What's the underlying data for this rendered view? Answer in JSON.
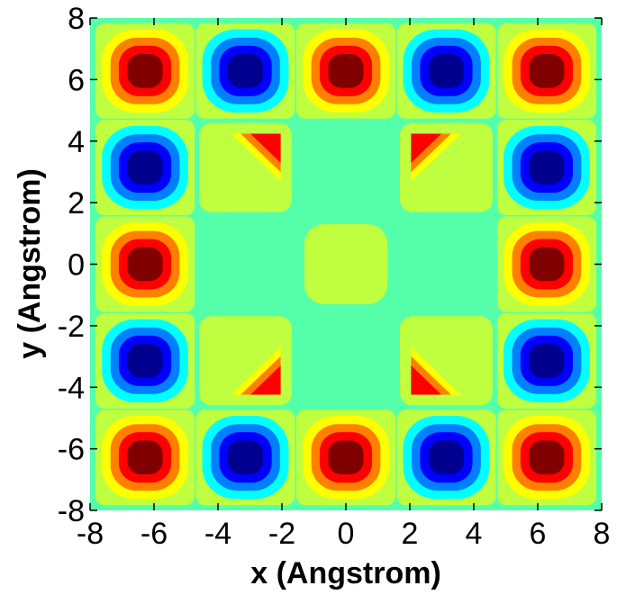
{
  "chart_data": {
    "type": "heatmap",
    "subtype": "filled-contour",
    "title": "",
    "xlabel": "x (Angstrom)",
    "ylabel": "y (Angstrom)",
    "xlim": [
      -8,
      8
    ],
    "ylim": [
      -8,
      8
    ],
    "xticks": [
      -8,
      -6,
      -4,
      -2,
      0,
      2,
      4,
      6,
      8
    ],
    "yticks": [
      -8,
      -6,
      -4,
      -2,
      0,
      2,
      4,
      6,
      8
    ],
    "xtick_labels": [
      "-8",
      "-6",
      "-4",
      "-2",
      "0",
      "2",
      "4",
      "6",
      "8"
    ],
    "ytick_labels": [
      "-8",
      "-6",
      "-4",
      "-2",
      "0",
      "2",
      "4",
      "6",
      "8"
    ],
    "grid": false,
    "colormap": "jet",
    "level_colors": [
      "#00008f",
      "#0000ff",
      "#0080ff",
      "#00ffff",
      "#55ffaa",
      "#c0ff40",
      "#ffff00",
      "#ff8000",
      "#ff0000",
      "#800000"
    ],
    "lobe_centers": [
      -6.28,
      -3.14,
      0,
      3.14,
      6.28
    ],
    "peaks": [
      {
        "x": -6.28,
        "y": 6.28,
        "sign": "positive"
      },
      {
        "x": -3.14,
        "y": 6.28,
        "sign": "negative"
      },
      {
        "x": 0,
        "y": 6.28,
        "sign": "positive"
      },
      {
        "x": 3.14,
        "y": 6.28,
        "sign": "negative"
      },
      {
        "x": 6.28,
        "y": 6.28,
        "sign": "positive"
      },
      {
        "x": -6.28,
        "y": 3.14,
        "sign": "negative"
      },
      {
        "x": 6.28,
        "y": 3.14,
        "sign": "negative"
      },
      {
        "x": -6.28,
        "y": 0,
        "sign": "positive"
      },
      {
        "x": 6.28,
        "y": 0,
        "sign": "positive"
      },
      {
        "x": -6.28,
        "y": -3.14,
        "sign": "negative"
      },
      {
        "x": 6.28,
        "y": -3.14,
        "sign": "negative"
      },
      {
        "x": -6.28,
        "y": -6.28,
        "sign": "positive"
      },
      {
        "x": -3.14,
        "y": -6.28,
        "sign": "negative"
      },
      {
        "x": 0,
        "y": -6.28,
        "sign": "positive"
      },
      {
        "x": 3.14,
        "y": -6.28,
        "sign": "negative"
      },
      {
        "x": 6.28,
        "y": -6.28,
        "sign": "positive"
      }
    ],
    "inner_features": [
      {
        "x": -3.14,
        "y": 3.14,
        "kind": "corner-wedge"
      },
      {
        "x": 3.14,
        "y": 3.14,
        "kind": "corner-wedge"
      },
      {
        "x": -3.14,
        "y": -3.14,
        "kind": "corner-wedge"
      },
      {
        "x": 3.14,
        "y": -3.14,
        "kind": "corner-wedge"
      },
      {
        "x": 0,
        "y": 0,
        "kind": "center-plateau"
      }
    ]
  }
}
